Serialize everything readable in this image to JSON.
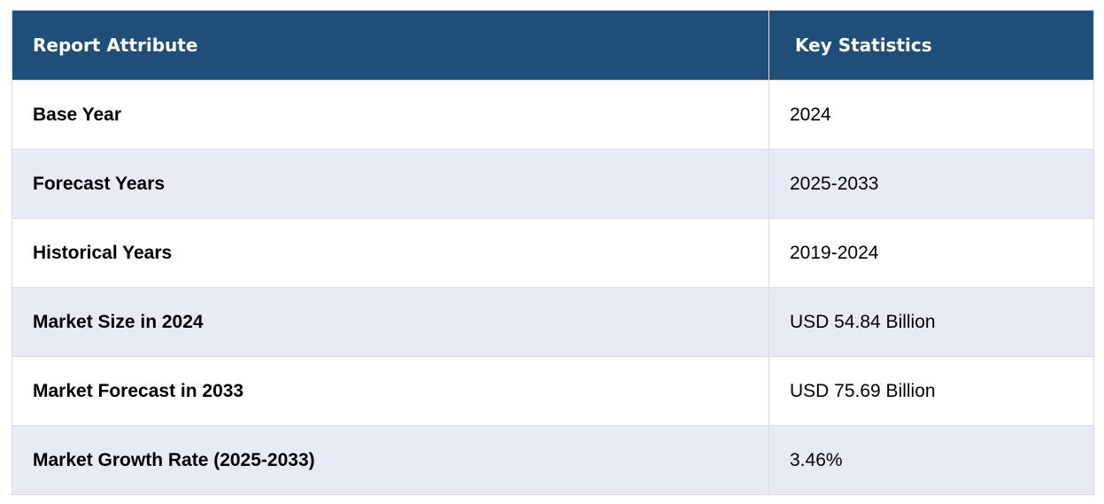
{
  "table": {
    "headers": [
      "Report Attribute",
      "Key Statistics"
    ],
    "rows": [
      {
        "attribute": "Base Year",
        "value": "2024"
      },
      {
        "attribute": "Forecast Years",
        "value": "2025-2033"
      },
      {
        "attribute": "Historical Years",
        "value": "2019-2024"
      },
      {
        "attribute": "Market Size in 2024",
        "value": "USD 54.84 Billion"
      },
      {
        "attribute": "Market Forecast in 2033",
        "value": "USD 75.69 Billion"
      },
      {
        "attribute": "Market Growth Rate (2025-2033)",
        "value": "3.46%"
      }
    ]
  },
  "colors": {
    "header_bg": "#1f4e79",
    "header_text": "#ffffff",
    "row_alt_bg": "#e8eaf5",
    "row_bg": "#ffffff",
    "border": "#d9dce6"
  }
}
